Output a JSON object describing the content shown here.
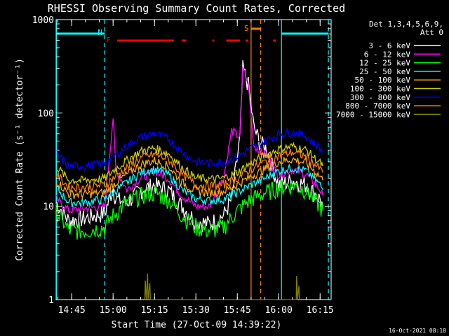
{
  "chart_data": {
    "type": "line",
    "title": "RHESSI Observing Summary Count Rates, Corrected",
    "xlabel": "Start Time (27-Oct-09 14:39:22)",
    "ylabel": "Corrected Count Rate (s⁻¹ detector⁻¹)",
    "y_scale": "log",
    "ylim": [
      1,
      1000
    ],
    "y_ticks": [
      {
        "value": 1,
        "label": "1"
      },
      {
        "value": 10,
        "label": "10"
      },
      {
        "value": 100,
        "label": "100"
      },
      {
        "value": 1000,
        "label": "1000"
      }
    ],
    "xlim": [
      "14:39:22",
      "16:19:00"
    ],
    "x_ticks": [
      "14:45",
      "15:00",
      "15:15",
      "15:30",
      "15:45",
      "16:00",
      "16:15"
    ],
    "legend_header": [
      "Det 1,3,4,5,6,9,",
      "Att 0"
    ],
    "legend_position": "right",
    "series": [
      {
        "name": "3 - 6 keV",
        "color": "#ffffff",
        "points": [
          [
            "14:39:22",
            11
          ],
          [
            "14:44:00",
            7
          ],
          [
            "14:50:00",
            7.5
          ],
          [
            "14:57:00",
            8.5
          ],
          [
            "15:00:00",
            16
          ],
          [
            "15:01:00",
            12
          ],
          [
            "15:05:00",
            11
          ],
          [
            "15:10:00",
            15
          ],
          [
            "15:15:00",
            17
          ],
          [
            "15:20:00",
            15
          ],
          [
            "15:25:00",
            10
          ],
          [
            "15:30:00",
            7
          ],
          [
            "15:35:00",
            6.5
          ],
          [
            "15:40:00",
            8
          ],
          [
            "15:43:00",
            12
          ],
          [
            "15:46:00",
            55
          ],
          [
            "15:47:00",
            300
          ],
          [
            "15:49:00",
            200
          ],
          [
            "15:51:00",
            70
          ],
          [
            "15:53:00",
            50
          ],
          [
            "15:56:00",
            40
          ],
          [
            "15:58:00",
            25
          ],
          [
            "16:00:00",
            17
          ],
          [
            "16:05:00",
            19
          ],
          [
            "16:10:00",
            17
          ],
          [
            "16:15:00",
            12
          ],
          [
            "16:16:00",
            10
          ]
        ]
      },
      {
        "name": "6 - 12 keV",
        "color": "#ff00ff",
        "points": [
          [
            "14:39:22",
            12
          ],
          [
            "14:44:00",
            9
          ],
          [
            "14:50:00",
            9.5
          ],
          [
            "14:57:00",
            10
          ],
          [
            "15:00:00",
            90
          ],
          [
            "15:01:00",
            25
          ],
          [
            "15:05:00",
            15
          ],
          [
            "15:10:00",
            20
          ],
          [
            "15:15:00",
            24
          ],
          [
            "15:20:00",
            20
          ],
          [
            "15:25:00",
            13
          ],
          [
            "15:30:00",
            10
          ],
          [
            "15:35:00",
            10
          ],
          [
            "15:40:00",
            20
          ],
          [
            "15:43:00",
            65
          ],
          [
            "15:46:00",
            55
          ],
          [
            "15:47:00",
            320
          ],
          [
            "15:49:00",
            200
          ],
          [
            "15:51:00",
            45
          ],
          [
            "15:53:00",
            40
          ],
          [
            "15:56:00",
            35
          ],
          [
            "15:58:00",
            26
          ],
          [
            "16:00:00",
            22
          ],
          [
            "16:05:00",
            25
          ],
          [
            "16:10:00",
            22
          ],
          [
            "16:15:00",
            15
          ],
          [
            "16:16:00",
            13
          ]
        ]
      },
      {
        "name": "12 - 25 keV",
        "color": "#00ff00",
        "points": [
          [
            "14:39:22",
            9
          ],
          [
            "14:44:00",
            5.5
          ],
          [
            "14:50:00",
            5.5
          ],
          [
            "14:57:00",
            6
          ],
          [
            "15:00:00",
            8
          ],
          [
            "15:05:00",
            11
          ],
          [
            "15:10:00",
            13
          ],
          [
            "15:15:00",
            14
          ],
          [
            "15:20:00",
            12
          ],
          [
            "15:25:00",
            8
          ],
          [
            "15:30:00",
            6
          ],
          [
            "15:35:00",
            5.5
          ],
          [
            "15:40:00",
            6
          ],
          [
            "15:45:00",
            9
          ],
          [
            "15:50:00",
            12
          ],
          [
            "15:55:00",
            14
          ],
          [
            "16:00:00",
            16
          ],
          [
            "16:05:00",
            17
          ],
          [
            "16:10:00",
            15
          ],
          [
            "16:15:00",
            10
          ],
          [
            "16:16:00",
            9
          ]
        ]
      },
      {
        "name": "25 - 50 keV",
        "color": "#00ffff",
        "points": [
          [
            "14:39:22",
            16
          ],
          [
            "14:44:00",
            11
          ],
          [
            "14:50:00",
            11
          ],
          [
            "14:57:00",
            12
          ],
          [
            "15:00:00",
            14
          ],
          [
            "15:05:00",
            18
          ],
          [
            "15:10:00",
            23
          ],
          [
            "15:15:00",
            25
          ],
          [
            "15:20:00",
            22
          ],
          [
            "15:25:00",
            15
          ],
          [
            "15:30:00",
            12
          ],
          [
            "15:35:00",
            11.5
          ],
          [
            "15:40:00",
            12
          ],
          [
            "15:45:00",
            14
          ],
          [
            "15:50:00",
            17
          ],
          [
            "15:55:00",
            20
          ],
          [
            "16:00:00",
            24
          ],
          [
            "16:05:00",
            26
          ],
          [
            "16:10:00",
            24
          ],
          [
            "16:15:00",
            17
          ],
          [
            "16:16:00",
            15
          ]
        ]
      },
      {
        "name": "50 - 100 keV",
        "color": "#ffaa00",
        "points": [
          [
            "14:39:22",
            19
          ],
          [
            "14:44:00",
            13.5
          ],
          [
            "14:50:00",
            13.5
          ],
          [
            "14:57:00",
            14
          ],
          [
            "15:00:00",
            17
          ],
          [
            "15:05:00",
            22
          ],
          [
            "15:10:00",
            28
          ],
          [
            "15:15:00",
            31
          ],
          [
            "15:20:00",
            27
          ],
          [
            "15:25:00",
            18
          ],
          [
            "15:30:00",
            14.5
          ],
          [
            "15:35:00",
            14
          ],
          [
            "15:40:00",
            14.5
          ],
          [
            "15:45:00",
            17
          ],
          [
            "15:50:00",
            21
          ],
          [
            "15:55:00",
            25
          ],
          [
            "16:00:00",
            30
          ],
          [
            "16:05:00",
            32
          ],
          [
            "16:10:00",
            29
          ],
          [
            "16:15:00",
            21
          ],
          [
            "16:16:00",
            19
          ]
        ]
      },
      {
        "name": "100 - 300 keV",
        "color": "#cccc00",
        "points": [
          [
            "14:39:22",
            27
          ],
          [
            "14:44:00",
            19
          ],
          [
            "14:50:00",
            19
          ],
          [
            "14:57:00",
            20
          ],
          [
            "15:00:00",
            24
          ],
          [
            "15:05:00",
            31
          ],
          [
            "15:10:00",
            39
          ],
          [
            "15:15:00",
            42
          ],
          [
            "15:20:00",
            37
          ],
          [
            "15:25:00",
            26
          ],
          [
            "15:30:00",
            20
          ],
          [
            "15:35:00",
            19.5
          ],
          [
            "15:40:00",
            20
          ],
          [
            "15:45:00",
            23
          ],
          [
            "15:50:00",
            29
          ],
          [
            "15:55:00",
            35
          ],
          [
            "16:00:00",
            41
          ],
          [
            "16:05:00",
            44
          ],
          [
            "16:10:00",
            40
          ],
          [
            "16:15:00",
            29
          ],
          [
            "16:16:00",
            27
          ]
        ]
      },
      {
        "name": "300 - 800 keV",
        "color": "#0000ff",
        "points": [
          [
            "14:39:22",
            37
          ],
          [
            "14:44:00",
            27
          ],
          [
            "14:50:00",
            27
          ],
          [
            "14:57:00",
            29
          ],
          [
            "15:00:00",
            34
          ],
          [
            "15:05:00",
            44
          ],
          [
            "15:10:00",
            55
          ],
          [
            "15:15:00",
            60
          ],
          [
            "15:20:00",
            53
          ],
          [
            "15:25:00",
            38
          ],
          [
            "15:30:00",
            30
          ],
          [
            "15:35:00",
            29
          ],
          [
            "15:40:00",
            30
          ],
          [
            "15:45:00",
            34
          ],
          [
            "15:50:00",
            42
          ],
          [
            "15:55:00",
            50
          ],
          [
            "16:00:00",
            59
          ],
          [
            "16:05:00",
            63
          ],
          [
            "16:10:00",
            57
          ],
          [
            "16:15:00",
            42
          ],
          [
            "16:16:00",
            38
          ]
        ]
      },
      {
        "name": "800 - 7000 keV",
        "color": "#ff8000",
        "points": [
          [
            "14:39:22",
            22
          ],
          [
            "14:44:00",
            16
          ],
          [
            "14:50:00",
            16
          ],
          [
            "14:57:00",
            17
          ],
          [
            "15:00:00",
            20
          ],
          [
            "15:05:00",
            26
          ],
          [
            "15:10:00",
            33
          ],
          [
            "15:15:00",
            36
          ],
          [
            "15:20:00",
            32
          ],
          [
            "15:25:00",
            22
          ],
          [
            "15:30:00",
            17
          ],
          [
            "15:35:00",
            16.5
          ],
          [
            "15:40:00",
            17
          ],
          [
            "15:45:00",
            20
          ],
          [
            "15:50:00",
            25
          ],
          [
            "15:55:00",
            30
          ],
          [
            "16:00:00",
            35
          ],
          [
            "16:05:00",
            38
          ],
          [
            "16:10:00",
            34
          ],
          [
            "16:15:00",
            25
          ],
          [
            "16:16:00",
            23
          ]
        ]
      },
      {
        "name": "7000 - 15000 keV",
        "color": "#808000",
        "points": [
          [
            "15:11:30",
            1
          ],
          [
            "15:11:40",
            1.6
          ],
          [
            "15:12:00",
            1
          ],
          [
            "15:12:30",
            1.9
          ],
          [
            "15:12:40",
            1
          ],
          [
            "15:13:20",
            1.5
          ],
          [
            "15:13:30",
            1
          ],
          [
            "16:06:20",
            1
          ],
          [
            "16:06:30",
            1.8
          ],
          [
            "16:06:50",
            1
          ],
          [
            "16:07:20",
            1.4
          ],
          [
            "16:07:30",
            1
          ]
        ]
      }
    ],
    "annotations": [
      {
        "label": "N",
        "color": "#00ffff",
        "at": "14:57:00"
      },
      {
        "label": "F",
        "color": "#ff0000",
        "at": "15:00:00"
      },
      {
        "label": "S",
        "color": "#ff8000",
        "at": "15:50:00"
      }
    ],
    "flag_bars": {
      "night": {
        "color": "#00ffff",
        "spans": [
          [
            "14:39:22",
            "14:57:00"
          ],
          [
            "16:01:00",
            "16:18:00"
          ]
        ]
      },
      "flare": {
        "color": "#ff0000",
        "spans": [
          [
            "15:01:30",
            "15:22:00"
          ],
          [
            "15:25:00",
            "15:26:30"
          ],
          [
            "15:36:00",
            "15:36:40"
          ],
          [
            "15:41:00",
            "15:46:00"
          ],
          [
            "15:48:00",
            "15:49:00"
          ],
          [
            "15:58:00",
            "15:59:00"
          ]
        ]
      },
      "saa": {
        "color": "#ff8000",
        "spans": [
          [
            "15:50:00",
            "15:53:30"
          ]
        ]
      }
    },
    "markers": [
      {
        "at": "14:39:30",
        "color": "#00ffff",
        "style": "solid"
      },
      {
        "at": "14:57:00",
        "color": "#00ffff",
        "style": "dashed"
      },
      {
        "at": "15:50:00",
        "color": "#ff8000",
        "style": "solid"
      },
      {
        "at": "15:53:30",
        "color": "#ff8000",
        "style": "dashed"
      },
      {
        "at": "16:01:00",
        "color": "#00ffff",
        "style": "solid"
      },
      {
        "at": "16:18:00",
        "color": "#00ffff",
        "style": "dashed"
      }
    ],
    "grid": false
  },
  "footer": {
    "timestamp": "16-Oct-2021 08:18"
  }
}
